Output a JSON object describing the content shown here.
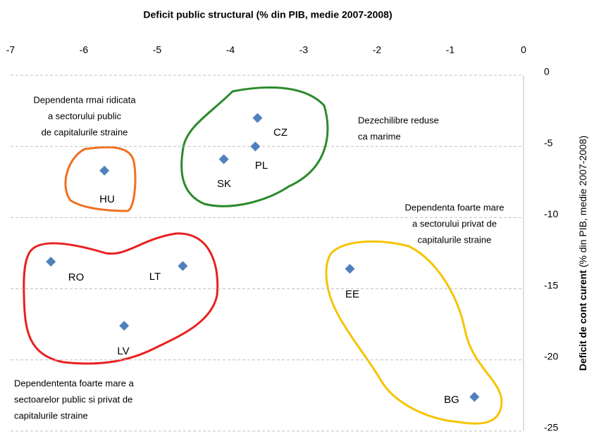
{
  "chart_data": {
    "type": "scatter",
    "title": "Deficit public structural (% din PIB, medie 2007-2008)",
    "ylabel": [
      "Deficit de cont curent",
      "(% din PIB, medie 2007-2008)"
    ],
    "x": [
      -5.72,
      -3.63,
      -3.66,
      -4.09,
      -6.45,
      -4.65,
      -5.45,
      -2.37,
      -0.67
    ],
    "values": [
      -6.7,
      -3.0,
      -5.0,
      -5.9,
      -13.1,
      -13.4,
      -17.6,
      -13.6,
      -22.6
    ],
    "point_labels": [
      "HU",
      "CZ",
      "PL",
      "SK",
      "RO",
      "LT",
      "LV",
      "EE",
      "BG"
    ],
    "color": "#4f81bd",
    "xlim": [
      -7,
      0
    ],
    "xticks": [
      -7,
      -6,
      -5,
      -4,
      -3,
      -2,
      -1,
      0
    ],
    "ylim": [
      -25,
      0
    ],
    "yticks": [
      0,
      -5,
      -10,
      -15,
      -20,
      -25
    ],
    "grid": true,
    "annotations": [
      {
        "lines": [
          "Dependenta rmai ridicata",
          "a sectorului public",
          "de capitalurile straine"
        ],
        "color": "#f07020"
      },
      {
        "lines": [
          "Dezechilibre reduse",
          "ca marime"
        ],
        "color": "#2e8b2e"
      },
      {
        "lines": [
          "Dependenta foarte mare",
          "a  sectorului privat de",
          "capitalurile straine"
        ],
        "color": "#e0801a"
      },
      {
        "lines": [
          "Dependententa  foarte mare a",
          "sectoarelor public si privat de",
          "capitalurile straine"
        ],
        "color": "#e82020"
      }
    ]
  }
}
